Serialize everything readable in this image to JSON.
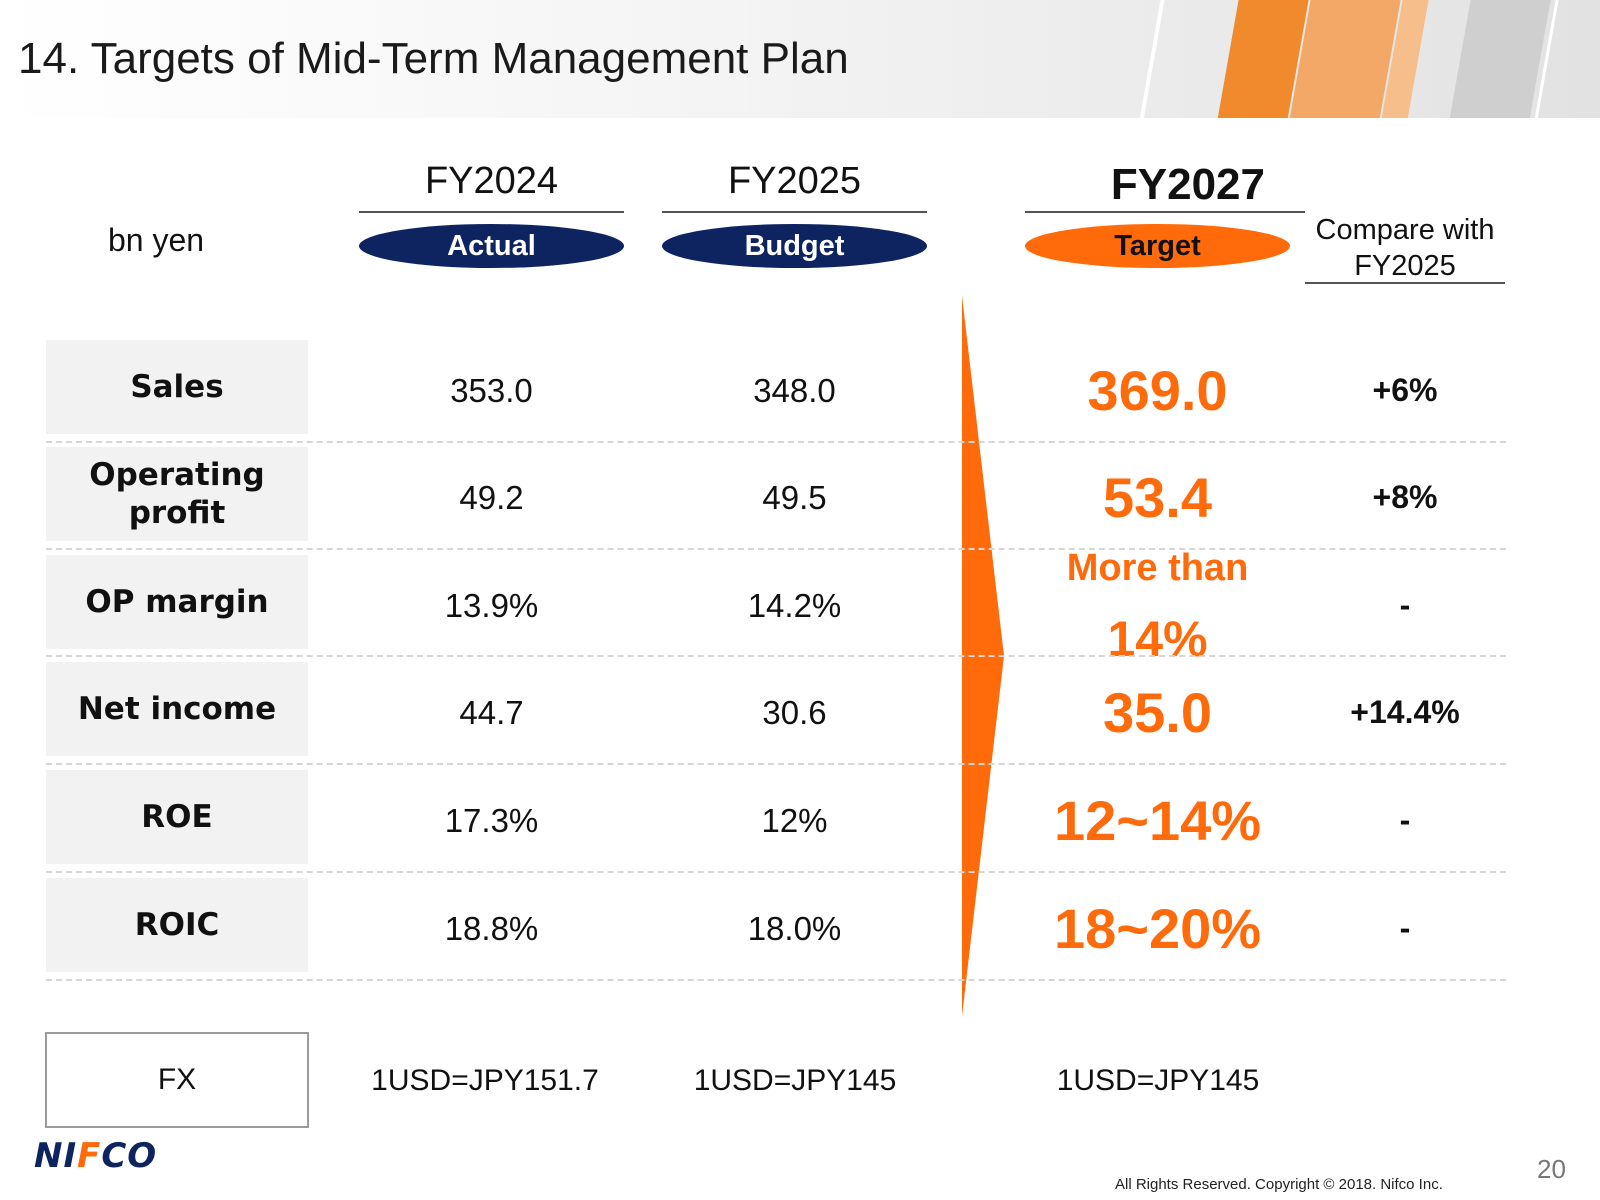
{
  "header": {
    "title": "14. Targets of Mid-Term Management Plan"
  },
  "unit_label": "bn yen",
  "columns": {
    "fy2024": {
      "year": "FY2024",
      "tag": "Actual"
    },
    "fy2025": {
      "year": "FY2025",
      "tag": "Budget"
    },
    "fy2027": {
      "year": "FY2027",
      "tag": "Target",
      "compare_line1": "Compare with",
      "compare_line2": "FY2025"
    }
  },
  "rows": [
    {
      "label_line1": "Sales",
      "label_line2": "",
      "fy2024": "353.0",
      "fy2025": "348.0",
      "target": "369.0",
      "compare": "+6%"
    },
    {
      "label_line1": "Operating",
      "label_line2": "profit",
      "fy2024": "49.2",
      "fy2025": "49.5",
      "target": "53.4",
      "compare": "+8%"
    },
    {
      "label_line1": "OP margin",
      "label_line2": "",
      "fy2024": "13.9%",
      "fy2025": "14.2%",
      "target_line1": "More than",
      "target_line2": "14%",
      "compare": "-"
    },
    {
      "label_line1": "Net income",
      "label_line2": "",
      "fy2024": "44.7",
      "fy2025": "30.6",
      "target": "35.0",
      "compare": "+14.4%"
    },
    {
      "label_line1": "ROE",
      "label_line2": "",
      "fy2024": "17.3%",
      "fy2025": "12%",
      "target": "12~14%",
      "compare": "-"
    },
    {
      "label_line1": "ROIC",
      "label_line2": "",
      "fy2024": "18.8%",
      "fy2025": "18.0%",
      "target": "18~20%",
      "compare": "-"
    }
  ],
  "fx": {
    "label": "FX",
    "fy2024": "1USD=JPY151.7",
    "fy2025": "1USD=JPY145",
    "fy2027": "1USD=JPY145"
  },
  "footer": {
    "logo_part1": "NI",
    "logo_part2": "F",
    "logo_part3": "CO",
    "copyright": "All Rights Reserved. Copyright © 2018. Nifco Inc.",
    "page_number": "20"
  },
  "colors": {
    "accent": "#ff6a0a",
    "navy": "#0e2461",
    "label_bg": "#f2f2f2"
  }
}
